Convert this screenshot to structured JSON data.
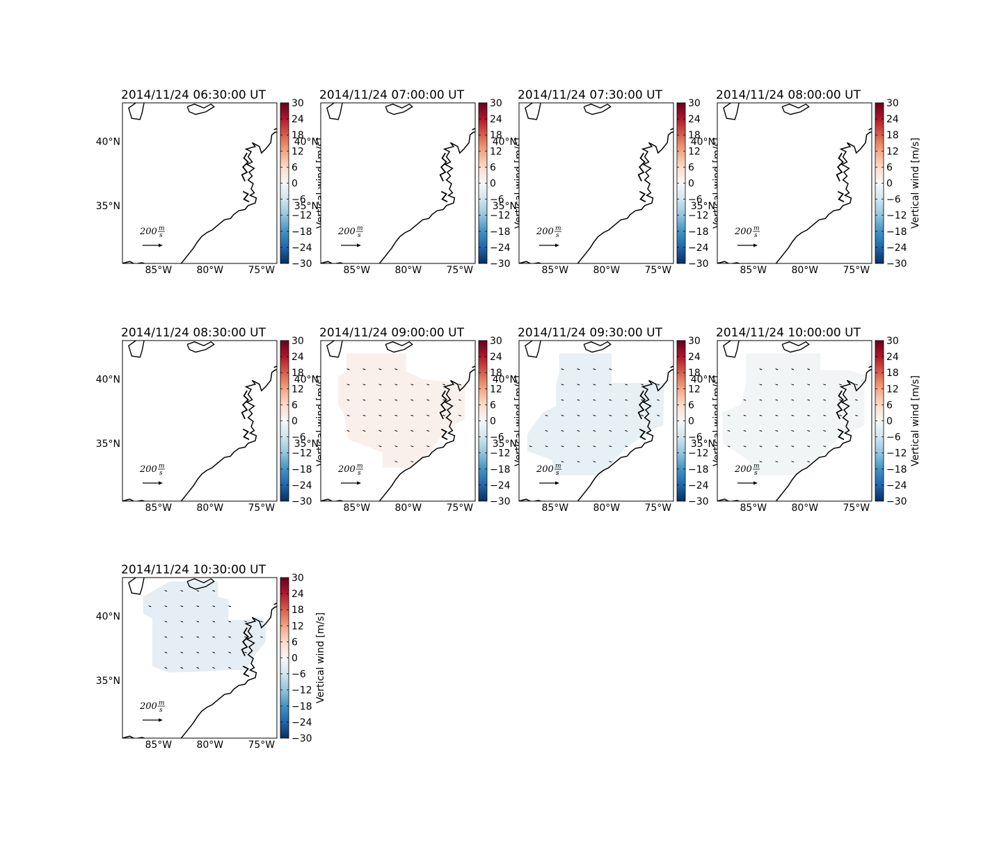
{
  "chart_data": {
    "type": "heatmap",
    "panels": [
      {
        "title": "2014/11/24 06:30:00 UT",
        "field": "none",
        "wind": null
      },
      {
        "title": "2014/11/24 07:00:00 UT",
        "field": "none",
        "wind": null
      },
      {
        "title": "2014/11/24 07:30:00 UT",
        "field": "none",
        "wind": null
      },
      {
        "title": "2014/11/24 08:00:00 UT",
        "field": "none",
        "wind": null
      },
      {
        "title": "2014/11/24 08:30:00 UT",
        "field": "none",
        "wind": null
      },
      {
        "title": "2014/11/24 09:00:00 UT",
        "field": "region_a",
        "wind": 1.5
      },
      {
        "title": "2014/11/24 09:30:00 UT",
        "field": "region_b",
        "wind": -2.5
      },
      {
        "title": "2014/11/24 10:00:00 UT",
        "field": "region_c",
        "wind": -0.8
      },
      {
        "title": "2014/11/24 10:30:00 UT",
        "field": "region_d",
        "wind": -3.0
      }
    ],
    "x_ticks": [
      "85°W",
      "80°W",
      "75°W"
    ],
    "y_ticks": [
      "40°N",
      "35°N"
    ],
    "xlim": [
      -88.5,
      -73.5
    ],
    "ylim": [
      30.5,
      43
    ],
    "colorbar": {
      "label": "Vertical wind [m/s]",
      "ticks": [
        "30",
        "24",
        "18",
        "12",
        "6",
        "0",
        "−6",
        "−12",
        "−18",
        "−24",
        "−30"
      ],
      "range": [
        -30,
        30
      ],
      "colormap": "RdBu_r"
    },
    "scale_arrow": {
      "value": "200",
      "unit_num": "m",
      "unit_den": "s"
    },
    "colors": {
      "coast": "#000000",
      "arrow": "#000000"
    }
  }
}
